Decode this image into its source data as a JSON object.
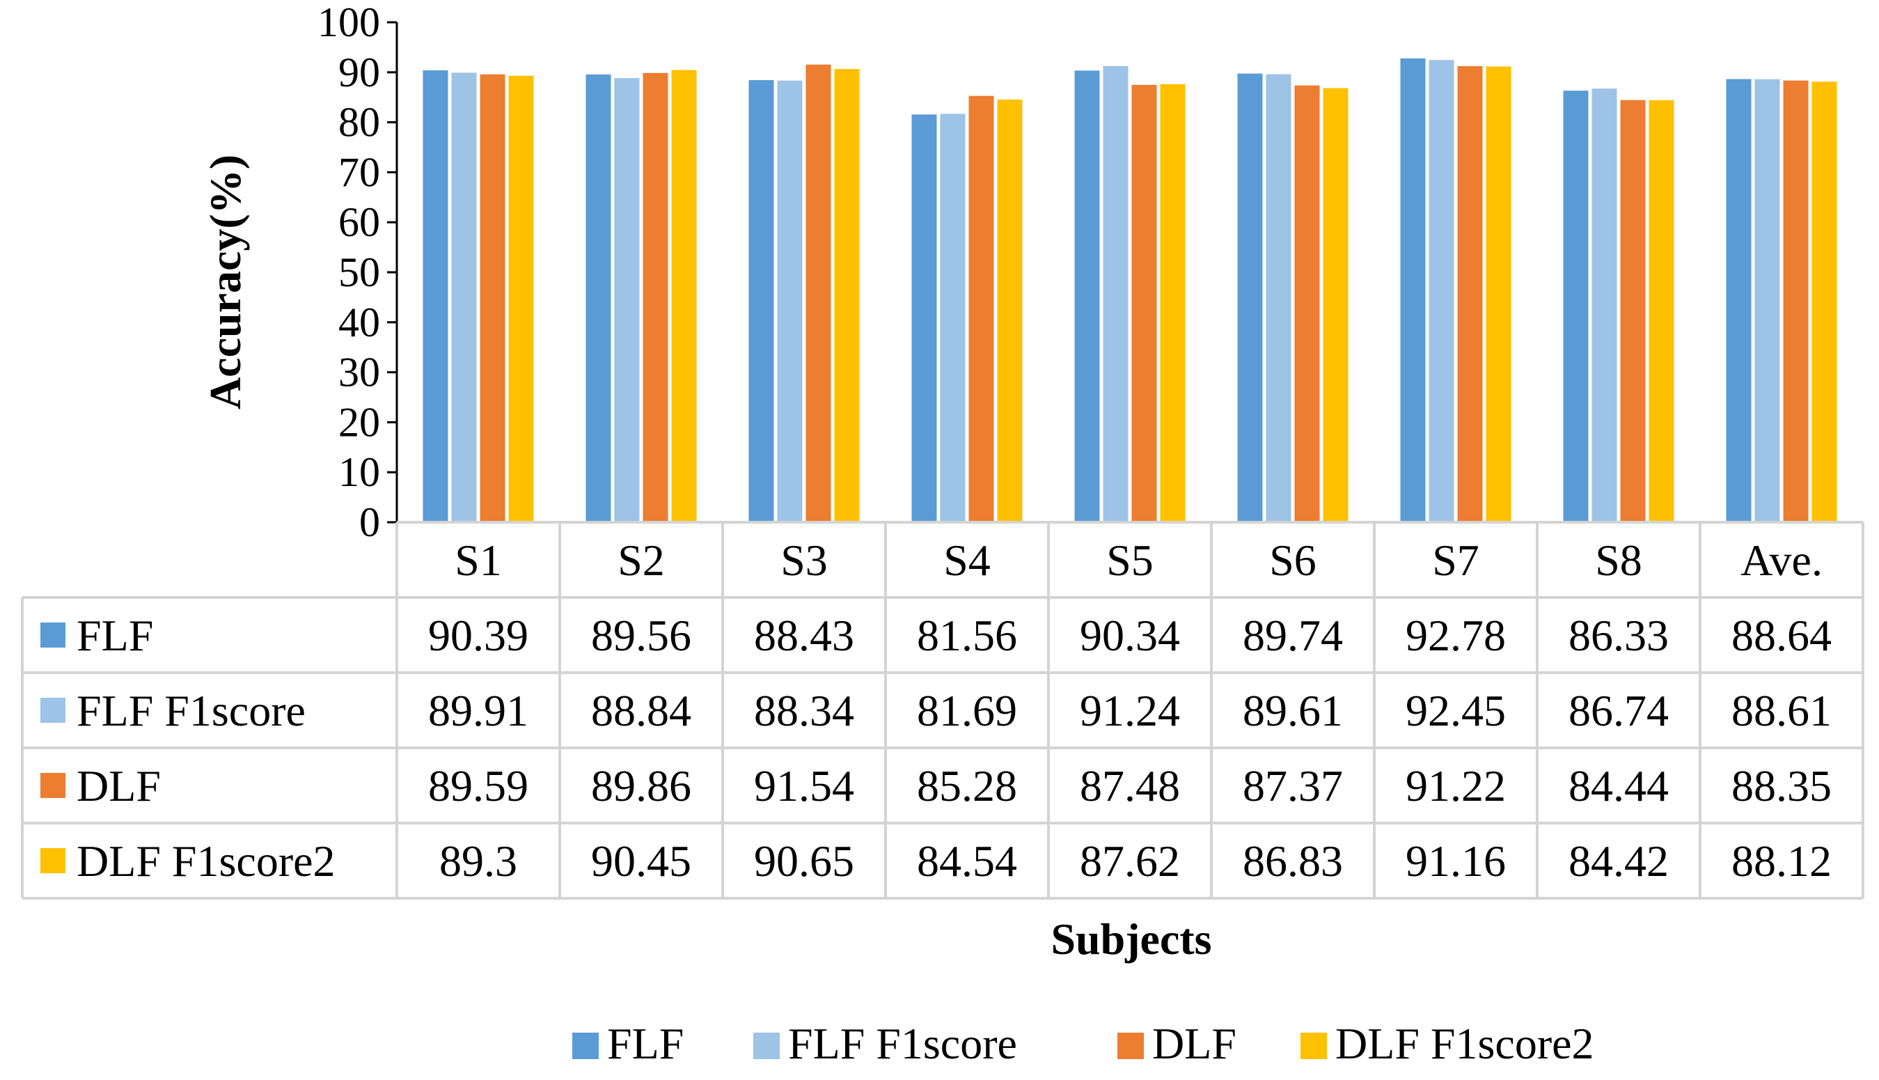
{
  "chart_data": {
    "type": "bar",
    "title": "",
    "xlabel": "Subjects",
    "ylabel": "Accuracy(%)",
    "ylim": [
      0,
      100
    ],
    "yticks": [
      "0",
      "10",
      "20",
      "30",
      "40",
      "50",
      "60",
      "70",
      "80",
      "90",
      "100"
    ],
    "categories": [
      "S1",
      "S2",
      "S3",
      "S4",
      "S5",
      "S6",
      "S7",
      "S8",
      "Ave."
    ],
    "series": [
      {
        "name": "FLF",
        "color": "#5B9BD5",
        "values": [
          90.39,
          89.56,
          88.43,
          81.56,
          90.34,
          89.74,
          92.78,
          86.33,
          88.64
        ],
        "labels": [
          "90.39",
          "89.56",
          "88.43",
          "81.56",
          "90.34",
          "89.74",
          "92.78",
          "86.33",
          "88.64"
        ]
      },
      {
        "name": "FLF F1score",
        "color": "#9DC3E6",
        "values": [
          89.91,
          88.84,
          88.34,
          81.69,
          91.24,
          89.61,
          92.45,
          86.74,
          88.61
        ],
        "labels": [
          "89.91",
          "88.84",
          "88.34",
          "81.69",
          "91.24",
          "89.61",
          "92.45",
          "86.74",
          "88.61"
        ]
      },
      {
        "name": "DLF",
        "color": "#ED7D31",
        "values": [
          89.59,
          89.86,
          91.54,
          85.28,
          87.48,
          87.37,
          91.22,
          84.44,
          88.35
        ],
        "labels": [
          "89.59",
          "89.86",
          "91.54",
          "85.28",
          "87.48",
          "87.37",
          "91.22",
          "84.44",
          "88.35"
        ]
      },
      {
        "name": "DLF F1score2",
        "color": "#FFC000",
        "values": [
          89.3,
          90.45,
          90.65,
          84.54,
          87.62,
          86.83,
          91.16,
          84.42,
          88.12
        ],
        "labels": [
          "89.3",
          "90.45",
          "90.65",
          "84.54",
          "87.62",
          "86.83",
          "91.16",
          "84.42",
          "88.12"
        ]
      }
    ],
    "grid": false,
    "data_table": true,
    "legend_position": "bottom"
  }
}
